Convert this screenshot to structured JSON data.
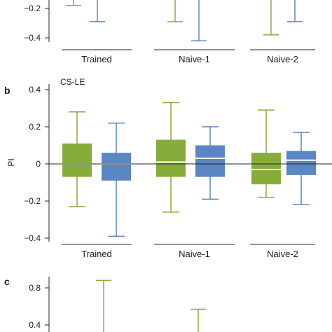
{
  "colors": {
    "green": "#86ad3a",
    "blue": "#5a86c2",
    "median": "#ffffff",
    "axis": "#222222"
  },
  "chart_data": [
    {
      "type": "box",
      "panel_label": "",
      "title": "",
      "ylabel": "",
      "categories": [
        "Trained",
        "Naive-1",
        "Naive-2"
      ],
      "visible_ticks": [
        "−0.2",
        "−0.4"
      ],
      "tick_values": [
        -0.2,
        -0.4
      ],
      "ylim": [
        -0.46,
        -0.08
      ],
      "cropped": "top",
      "series": [
        {
          "color": "green",
          "boxes": [
            {
              "whisker_low": -0.18
            },
            {
              "whisker_low": -0.29
            },
            {
              "whisker_low": -0.38
            }
          ]
        },
        {
          "color": "blue",
          "boxes": [
            {
              "whisker_low": -0.29
            },
            {
              "whisker_low": -0.42
            },
            {
              "whisker_low": -0.29
            }
          ]
        }
      ]
    },
    {
      "type": "box",
      "panel_label": "b",
      "title": "CS-LE",
      "ylabel": "PI",
      "categories": [
        "Trained",
        "Naive-1",
        "Naive-2"
      ],
      "visible_ticks": [
        "0.4",
        "0.2",
        "0",
        "−0.2",
        "−0.4"
      ],
      "tick_values": [
        0.4,
        0.2,
        0,
        -0.2,
        -0.4
      ],
      "ylim": [
        -0.43,
        0.43
      ],
      "series": [
        {
          "color": "green",
          "boxes": [
            {
              "whisker_low": -0.23,
              "q1": -0.07,
              "median": 0.0,
              "q3": 0.11,
              "whisker_high": 0.28
            },
            {
              "whisker_low": -0.26,
              "q1": -0.07,
              "median": 0.01,
              "q3": 0.13,
              "whisker_high": 0.33
            },
            {
              "whisker_low": -0.18,
              "q1": -0.11,
              "median": -0.03,
              "q3": 0.06,
              "whisker_high": 0.29
            }
          ]
        },
        {
          "color": "blue",
          "boxes": [
            {
              "whisker_low": -0.39,
              "q1": -0.09,
              "median": 0.0,
              "q3": 0.06,
              "whisker_high": 0.22
            },
            {
              "whisker_low": -0.19,
              "q1": -0.07,
              "median": 0.03,
              "q3": 0.1,
              "whisker_high": 0.2
            },
            {
              "whisker_low": -0.22,
              "q1": -0.06,
              "median": 0.02,
              "q3": 0.07,
              "whisker_high": 0.17
            }
          ]
        }
      ]
    },
    {
      "type": "box",
      "panel_label": "c",
      "title": "",
      "ylabel": "",
      "categories": [],
      "visible_ticks": [
        "0.8",
        "0.4"
      ],
      "tick_values": [
        0.8,
        0.4
      ],
      "ylim": [
        0.3,
        0.9
      ],
      "cropped": "bottom",
      "series": [
        {
          "color": "green",
          "boxes": [
            {
              "whisker_high": 0.88
            },
            {
              "whisker_high": 0.57
            }
          ]
        }
      ]
    }
  ]
}
